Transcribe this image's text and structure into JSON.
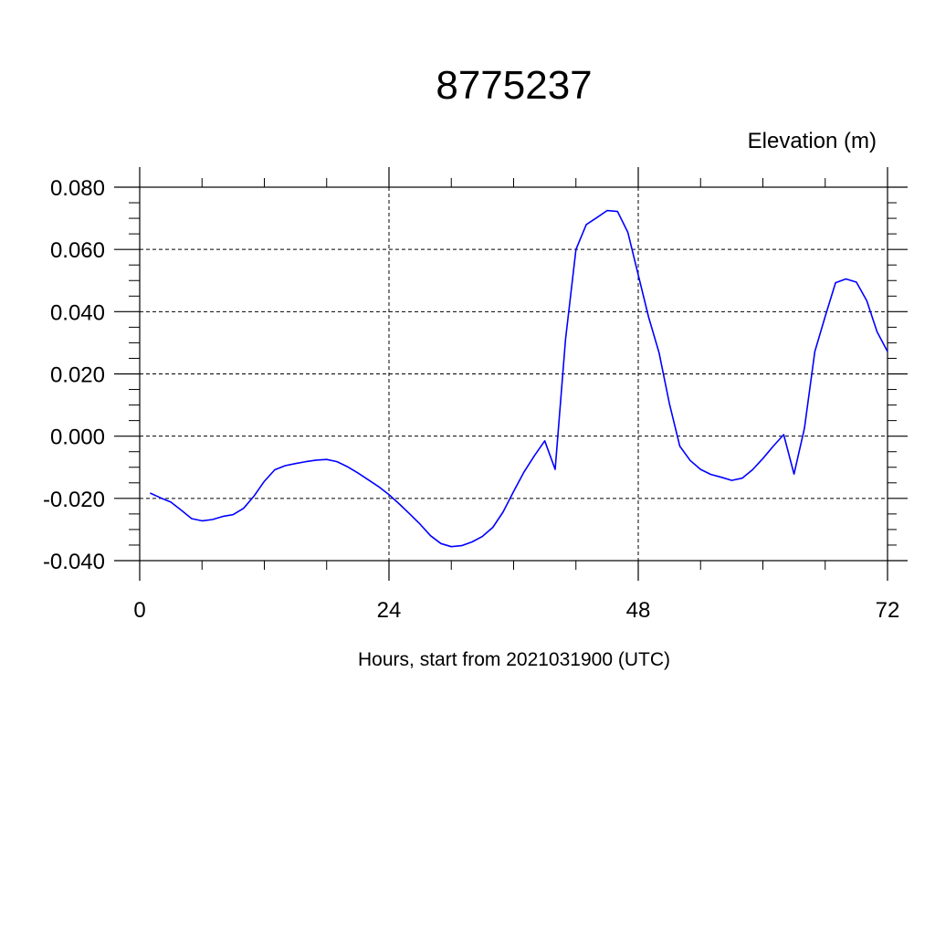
{
  "chart_data": {
    "type": "line",
    "title": "8775237",
    "units_label": "Elevation (m)",
    "xlabel": "Hours, start from 2021031900 (UTC)",
    "ylabel": "",
    "xlim": [
      0,
      72
    ],
    "ylim": [
      -0.04,
      0.08
    ],
    "x_ticks": [
      0,
      24,
      48,
      72
    ],
    "x_tick_labels": [
      "0",
      "24",
      "48",
      "72"
    ],
    "y_ticks": [
      -0.04,
      -0.02,
      0.0,
      0.02,
      0.04,
      0.06,
      0.08
    ],
    "y_tick_labels": [
      "-0.040",
      "-0.020",
      "0.000",
      "0.020",
      "0.040",
      "0.060",
      "0.080"
    ],
    "grid": true,
    "line_color": "#0000ff",
    "series": [
      {
        "x": [
          1,
          2,
          3,
          4,
          5,
          6,
          7,
          8,
          9,
          10,
          11,
          12,
          13,
          14,
          15,
          16,
          17,
          18,
          19,
          20,
          21,
          22,
          23,
          24,
          25,
          26,
          27,
          28,
          29,
          30,
          31,
          32,
          33,
          34,
          35,
          36,
          37,
          38,
          39,
          40,
          41,
          42,
          43,
          44,
          45,
          46,
          47,
          48,
          49,
          50,
          51,
          52,
          53,
          54,
          55,
          56,
          57,
          58,
          59,
          60,
          61,
          62,
          63,
          64,
          65,
          66,
          67,
          68,
          69,
          70,
          71,
          72
        ],
        "values": [
          -0.0183,
          -0.0198,
          -0.0212,
          -0.0238,
          -0.0265,
          -0.0272,
          -0.0268,
          -0.0258,
          -0.0252,
          -0.0232,
          -0.0193,
          -0.0145,
          -0.0108,
          -0.0095,
          -0.0088,
          -0.0082,
          -0.0077,
          -0.0075,
          -0.0082,
          -0.0098,
          -0.0118,
          -0.014,
          -0.0162,
          -0.0188,
          -0.0218,
          -0.025,
          -0.0283,
          -0.032,
          -0.0345,
          -0.0355,
          -0.0352,
          -0.034,
          -0.0322,
          -0.0293,
          -0.0243,
          -0.0178,
          -0.0115,
          -0.0063,
          -0.0015,
          -0.0107,
          0.0312,
          0.06,
          0.068,
          0.0702,
          0.0725,
          0.0722,
          0.0655,
          0.0518,
          0.0382,
          0.0268,
          0.0105,
          -0.0032,
          -0.0078,
          -0.0107,
          -0.0123,
          -0.0132,
          -0.0142,
          -0.0135,
          -0.0108,
          -0.0072,
          -0.0032,
          0.0005,
          -0.0122,
          0.0025,
          0.0272,
          0.0385,
          0.0493,
          0.0505,
          0.0495,
          0.0435,
          0.0335,
          0.0272
        ]
      }
    ]
  }
}
